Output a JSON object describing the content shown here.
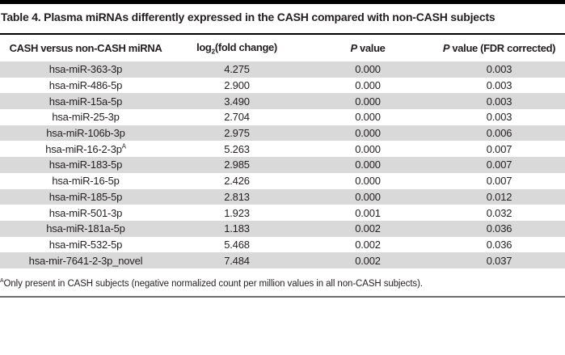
{
  "title": "Table 4. Plasma miRNAs differently expressed in the CASH compared with non-CASH subjects",
  "table": {
    "header": {
      "mirna": "CASH versus non-CASH miRNA",
      "log_pre": "log",
      "log_sub": "2",
      "log_post": "(fold change)",
      "p_italic": "P",
      "p_rest": " value",
      "fdr_rest": " value (FDR corrected)"
    },
    "rows": [
      {
        "mirna": "hsa-miR-363-3p",
        "mirna_sup": "",
        "log2fc": "4.275",
        "p": "0.000",
        "fdr": "0.003"
      },
      {
        "mirna": "hsa-miR-486-5p",
        "mirna_sup": "",
        "log2fc": "2.900",
        "p": "0.000",
        "fdr": "0.003"
      },
      {
        "mirna": "hsa-miR-15a-5p",
        "mirna_sup": "",
        "log2fc": "3.490",
        "p": "0.000",
        "fdr": "0.003"
      },
      {
        "mirna": "hsa-miR-25-3p",
        "mirna_sup": "",
        "log2fc": "2.704",
        "p": "0.000",
        "fdr": "0.003"
      },
      {
        "mirna": "hsa-miR-106b-3p",
        "mirna_sup": "",
        "log2fc": "2.975",
        "p": "0.000",
        "fdr": "0.006"
      },
      {
        "mirna": "hsa-miR-16-2-3p",
        "mirna_sup": "A",
        "log2fc": "5.263",
        "p": "0.000",
        "fdr": "0.007"
      },
      {
        "mirna": "hsa-miR-183-5p",
        "mirna_sup": "",
        "log2fc": "2.985",
        "p": "0.000",
        "fdr": "0.007"
      },
      {
        "mirna": "hsa-miR-16-5p",
        "mirna_sup": "",
        "log2fc": "2.426",
        "p": "0.000",
        "fdr": "0.007"
      },
      {
        "mirna": "hsa-miR-185-5p",
        "mirna_sup": "",
        "log2fc": "2.813",
        "p": "0.000",
        "fdr": "0.012"
      },
      {
        "mirna": "hsa-miR-501-3p",
        "mirna_sup": "",
        "log2fc": "1.923",
        "p": "0.001",
        "fdr": "0.032"
      },
      {
        "mirna": "hsa-miR-181a-5p",
        "mirna_sup": "",
        "log2fc": "1.183",
        "p": "0.002",
        "fdr": "0.036"
      },
      {
        "mirna": "hsa-miR-532-5p",
        "mirna_sup": "",
        "log2fc": "5.468",
        "p": "0.002",
        "fdr": "0.036"
      },
      {
        "mirna": "hsa-mir-7641-2-3p_novel",
        "mirna_sup": "",
        "log2fc": "7.484",
        "p": "0.002",
        "fdr": "0.037"
      }
    ]
  },
  "footnote": {
    "sup": "A",
    "text": "Only present in CASH subjects (negative normalized count per million values in all non-CASH subjects)."
  },
  "colors": {
    "row_shade": "#d9d9d9",
    "text": "#231f20",
    "top_and_title_rule": "#000000",
    "bottom_rule": "#6e6e6e"
  }
}
